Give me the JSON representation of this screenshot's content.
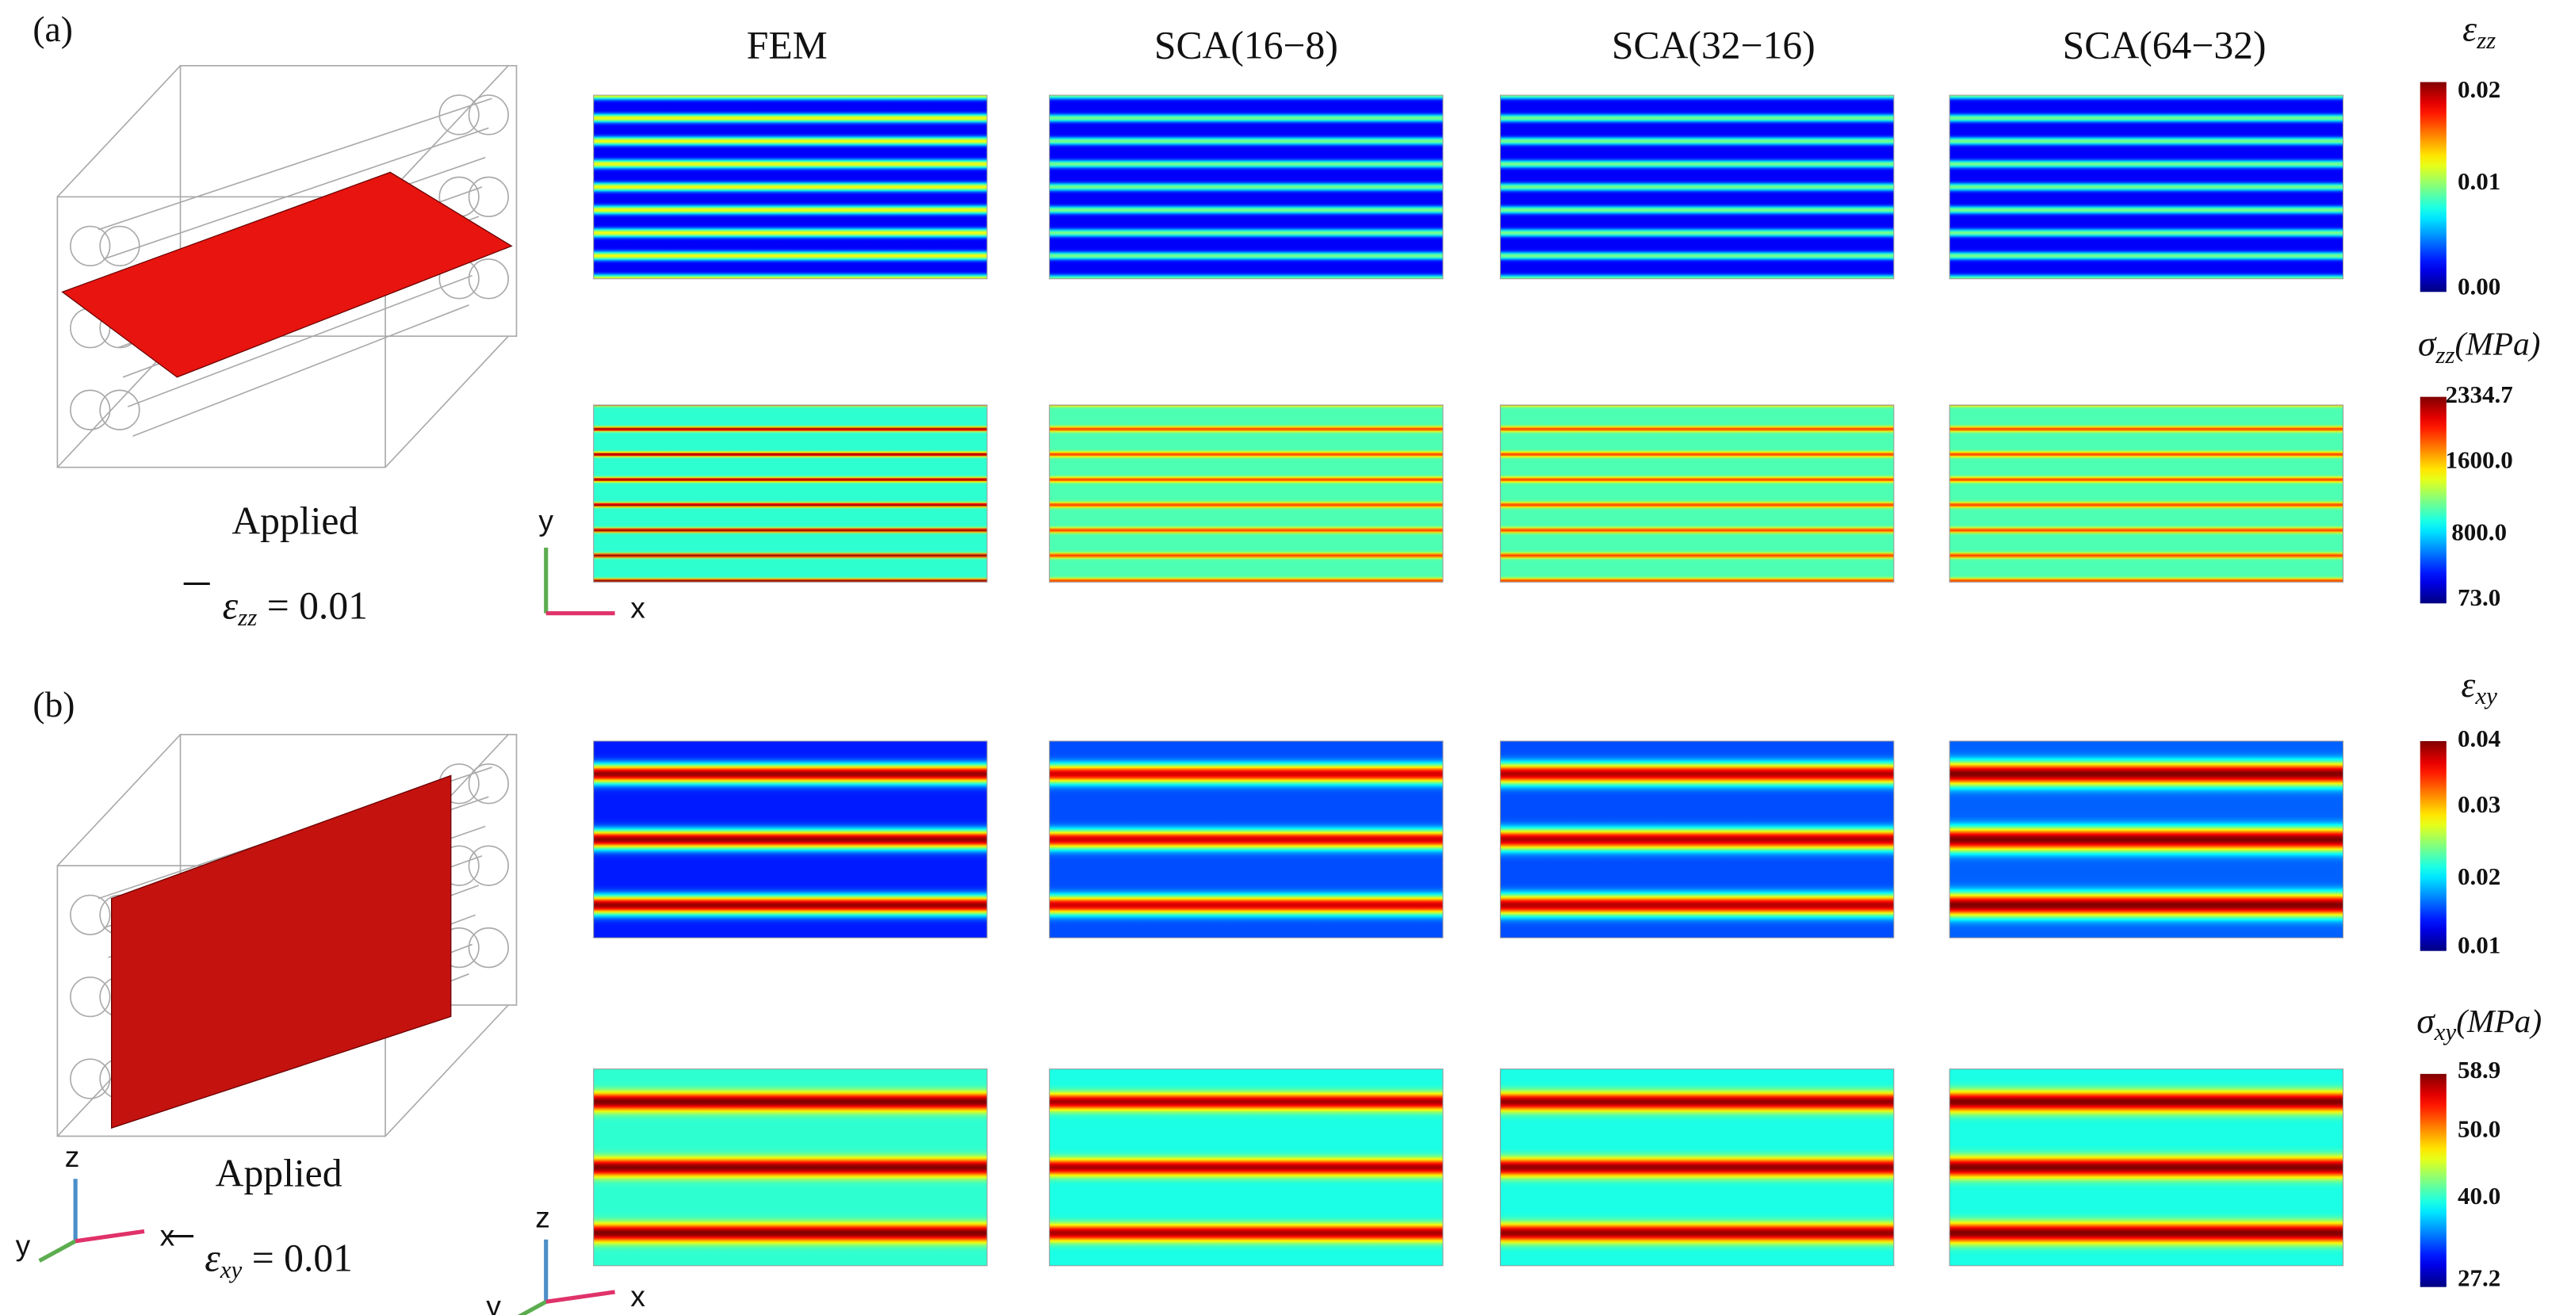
{
  "columns": [
    "FEM",
    "SCA(16−8)",
    "SCA(32−16)",
    "SCA(64−32)"
  ],
  "panels": [
    {
      "label": "(a)",
      "applied": {
        "caption": "Applied",
        "symbol": "ε",
        "subscript": "zz",
        "value": "= 0.01"
      },
      "triads": [
        [
          "y",
          "x"
        ]
      ],
      "colorbars": [
        {
          "symbol": "ε",
          "subscript": "zz",
          "ticks": [
            "0.02",
            "0.01",
            "0.00"
          ]
        },
        {
          "symbol": "σ",
          "subscript": "zz",
          "unit": "(MPa)",
          "ticks": [
            "2334.7",
            "1600.0",
            "800.0",
            "73.0"
          ]
        }
      ]
    },
    {
      "label": "(b)",
      "applied": {
        "caption": "Applied",
        "symbol": "ε",
        "subscript": "xy",
        "value": "= 0.01"
      },
      "triads": [
        [
          "z",
          "y",
          "x"
        ],
        [
          "z",
          "y",
          "x"
        ]
      ],
      "colorbars": [
        {
          "symbol": "ε",
          "subscript": "xy",
          "ticks": [
            "0.04",
            "0.03",
            "0.02",
            "0.01"
          ]
        },
        {
          "symbol": "σ",
          "subscript": "xy",
          "unit": "(MPa)",
          "ticks": [
            "58.9",
            "50.0",
            "40.0",
            "27.2"
          ]
        }
      ]
    }
  ]
}
